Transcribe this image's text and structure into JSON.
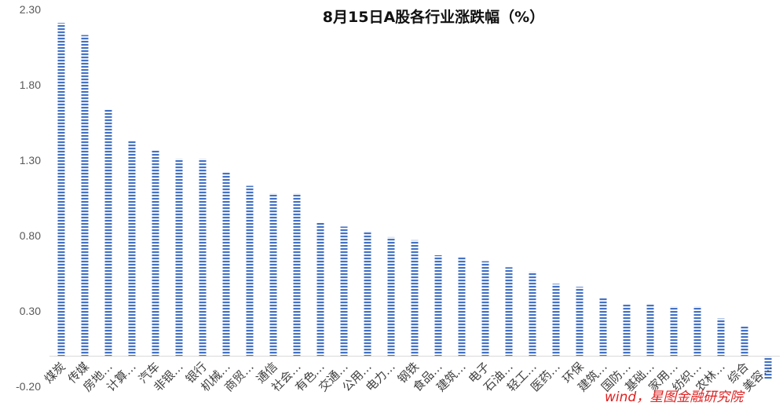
{
  "chart_data": {
    "type": "bar",
    "title": "8月15日A股各行业涨跌幅（%）",
    "xlabel": "",
    "ylabel": "",
    "ylim": [
      -0.2,
      2.3
    ],
    "yticks": [
      "2.30",
      "1.80",
      "1.30",
      "0.80",
      "0.30",
      "-0.20"
    ],
    "ytick_values": [
      2.3,
      1.8,
      1.3,
      0.8,
      0.3,
      -0.2
    ],
    "grid": false,
    "legend": "none",
    "bar_color": "#4472c4",
    "bar_pattern": "horizontal-stripes",
    "categories": [
      "煤炭",
      "传媒",
      "房地…",
      "计算…",
      "汽车",
      "非银…",
      "银行",
      "机械…",
      "商贸…",
      "通信",
      "社会…",
      "有色…",
      "交通…",
      "公用…",
      "电力…",
      "钢铁",
      "食品…",
      "建筑…",
      "电子",
      "石油…",
      "轻工…",
      "医药…",
      "环保",
      "建筑…",
      "国防…",
      "基础…",
      "家用…",
      "纺织…",
      "农林…",
      "综合",
      "美容…"
    ],
    "values": [
      2.21,
      2.13,
      1.64,
      1.43,
      1.37,
      1.31,
      1.31,
      1.22,
      1.13,
      1.08,
      1.08,
      0.89,
      0.86,
      0.83,
      0.79,
      0.77,
      0.67,
      0.66,
      0.63,
      0.59,
      0.56,
      0.48,
      0.46,
      0.39,
      0.35,
      0.35,
      0.33,
      0.33,
      0.25,
      0.2,
      -0.15
    ]
  },
  "watermark": "wind，星图金融研究院"
}
